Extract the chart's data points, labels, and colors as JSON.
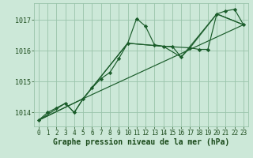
{
  "background_color": "#cce8d8",
  "grid_color": "#99c4aa",
  "line_color": "#1a5c2a",
  "marker_color": "#1a5c2a",
  "xlabel": "Graphe pression niveau de la mer (hPa)",
  "xlabel_color": "#1a4a1a",
  "tick_color": "#1a4a1a",
  "xlim": [
    -0.5,
    23.5
  ],
  "ylim": [
    1013.55,
    1017.55
  ],
  "yticks": [
    1014,
    1015,
    1016,
    1017
  ],
  "xticks": [
    0,
    1,
    2,
    3,
    4,
    5,
    6,
    7,
    8,
    9,
    10,
    11,
    12,
    13,
    14,
    15,
    16,
    17,
    18,
    19,
    20,
    21,
    22,
    23
  ],
  "line1_x": [
    0,
    1,
    2,
    3,
    4,
    5,
    6,
    7,
    8,
    9,
    10,
    11,
    12,
    13,
    14,
    15,
    16,
    17,
    18,
    19,
    20,
    21,
    22,
    23
  ],
  "line1_y": [
    1013.75,
    1014.0,
    1014.15,
    1014.3,
    1014.0,
    1014.45,
    1014.8,
    1015.1,
    1015.3,
    1015.75,
    1016.25,
    1017.05,
    1016.8,
    1016.2,
    1016.15,
    1016.15,
    1015.8,
    1016.1,
    1016.05,
    1016.05,
    1017.2,
    1017.3,
    1017.35,
    1016.85
  ],
  "line2_x": [
    0,
    3,
    4,
    5,
    23
  ],
  "line2_y": [
    1013.75,
    1014.3,
    1014.0,
    1014.45,
    1016.85
  ],
  "line3_x": [
    0,
    5,
    10,
    14,
    16,
    20,
    23
  ],
  "line3_y": [
    1013.75,
    1014.45,
    1016.25,
    1016.15,
    1015.8,
    1017.2,
    1016.85
  ],
  "line4_x": [
    0,
    5,
    10,
    14,
    17,
    20,
    23
  ],
  "line4_y": [
    1013.75,
    1014.45,
    1016.25,
    1016.15,
    1016.1,
    1017.2,
    1016.85
  ],
  "tick_fontsize": 5.5,
  "xlabel_fontsize": 7.0,
  "figsize": [
    3.2,
    2.0
  ],
  "dpi": 100
}
